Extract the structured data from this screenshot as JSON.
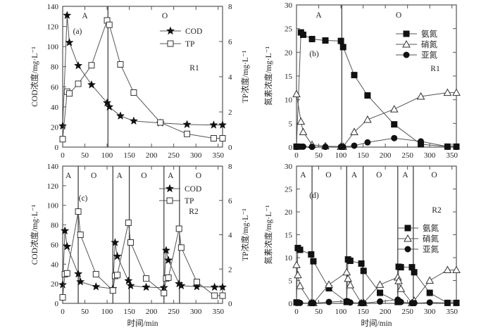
{
  "chart_data": [
    {
      "id": "a",
      "type": "line",
      "panel_label": "(a)",
      "reactor_label": "R1",
      "xlabel": "",
      "ylabel": "COD浓度/mg·L⁻¹",
      "y2label": "TP浓度/mg·L⁻¹",
      "xlim": [
        0,
        360
      ],
      "ylim": [
        0,
        140
      ],
      "y2lim": [
        0,
        8
      ],
      "xticks": [
        0,
        50,
        100,
        150,
        200,
        250,
        300,
        350
      ],
      "yticks": [
        0,
        20,
        40,
        60,
        80,
        100,
        120,
        140
      ],
      "y2ticks": [
        0,
        2,
        4,
        6,
        8
      ],
      "phase_boundaries": [
        102
      ],
      "phases": [
        {
          "label": "A",
          "x": 50
        },
        {
          "label": "O",
          "x": 230
        }
      ],
      "legend": {
        "placement": "top-right",
        "entries": [
          "COD",
          "TP"
        ]
      },
      "series": [
        {
          "name": "COD",
          "axis": "left",
          "marker": "star",
          "x": [
            0,
            10,
            15,
            35,
            65,
            100,
            105,
            130,
            160,
            220,
            280,
            340,
            360
          ],
          "y": [
            21,
            131,
            104,
            81,
            62,
            44,
            40,
            31,
            26,
            24,
            22.5,
            22,
            22
          ]
        },
        {
          "name": "TP",
          "axis": "right",
          "marker": "square-open",
          "x": [
            0,
            10,
            15,
            35,
            65,
            100,
            105,
            130,
            160,
            220,
            280,
            340,
            360
          ],
          "y": [
            0.45,
            3.15,
            3.05,
            3.6,
            4.65,
            7.2,
            6.95,
            4.7,
            3.1,
            1.4,
            0.75,
            0.5,
            0.5
          ]
        }
      ]
    },
    {
      "id": "b",
      "type": "line",
      "panel_label": "(b)",
      "reactor_label": "R1",
      "xlabel": "",
      "ylabel": "氮素浓度/mg·L⁻¹",
      "xlim": [
        0,
        360
      ],
      "ylim": [
        0,
        30
      ],
      "xticks": [
        0,
        50,
        100,
        150,
        200,
        250,
        300,
        350
      ],
      "yticks": [
        0,
        5,
        10,
        15,
        20,
        25,
        30
      ],
      "phase_boundaries": [
        102
      ],
      "phases": [
        {
          "label": "A",
          "x": 50
        },
        {
          "label": "O",
          "x": 230
        }
      ],
      "legend": {
        "placement": "top-right",
        "entries": [
          "氨氮",
          "硝氮",
          "亚氮"
        ]
      },
      "series": [
        {
          "name": "氨氮",
          "marker": "square-filled",
          "x": [
            0,
            10,
            15,
            35,
            65,
            100,
            105,
            130,
            160,
            220,
            280,
            340,
            360
          ],
          "y": [
            0.1,
            24.2,
            23.7,
            22.8,
            22.5,
            22.4,
            21.1,
            15.2,
            10.9,
            4.8,
            0.6,
            0.1,
            0.1
          ]
        },
        {
          "name": "硝氮",
          "marker": "triangle-open",
          "x": [
            0,
            10,
            15,
            35,
            65,
            100,
            105,
            130,
            160,
            220,
            280,
            340,
            360
          ],
          "y": [
            11.2,
            5.4,
            3.2,
            0.5,
            0.2,
            0.1,
            0.1,
            3.2,
            5.8,
            8.0,
            10.7,
            11.5,
            11.5
          ]
        },
        {
          "name": "亚氮",
          "marker": "circle-filled",
          "x": [
            0,
            10,
            15,
            35,
            65,
            100,
            105,
            130,
            160,
            220,
            280,
            340,
            360
          ],
          "y": [
            0.05,
            0.1,
            0.1,
            0.05,
            0.05,
            0.05,
            0.05,
            0.3,
            1.0,
            1.9,
            1.2,
            0.1,
            0.05
          ]
        }
      ]
    },
    {
      "id": "c",
      "type": "line",
      "panel_label": "(c)",
      "reactor_label": "R2",
      "xlabel": "时间/min",
      "ylabel": "COD浓度/mg·L⁻¹",
      "y2label": "TP浓度/mg·L⁻¹",
      "xlim": [
        0,
        360
      ],
      "ylim": [
        0,
        140
      ],
      "y2lim": [
        0,
        8
      ],
      "xticks": [
        0,
        50,
        100,
        150,
        200,
        250,
        300,
        350
      ],
      "yticks": [
        0,
        20,
        40,
        60,
        80,
        100,
        120,
        140
      ],
      "y2ticks": [
        0,
        2,
        4,
        6,
        8
      ],
      "phase_boundaries": [
        35,
        113,
        150,
        228,
        263
      ],
      "phases": [
        {
          "label": "A",
          "x": 13
        },
        {
          "label": "O",
          "x": 70
        },
        {
          "label": "A",
          "x": 128
        },
        {
          "label": "O",
          "x": 183
        },
        {
          "label": "A",
          "x": 243
        },
        {
          "label": "O",
          "x": 306
        }
      ],
      "legend": {
        "placement": "top-right",
        "entries": [
          "COD",
          "TP"
        ]
      },
      "series": [
        {
          "name": "COD",
          "axis": "left",
          "marker": "star",
          "x": [
            0,
            5,
            10,
            35,
            40,
            75,
            113,
            118,
            123,
            148,
            153,
            188,
            228,
            233,
            238,
            262,
            267,
            302,
            342,
            360
          ],
          "y": [
            19,
            74,
            58,
            30,
            22,
            17,
            15,
            62,
            48,
            23,
            18,
            16.5,
            16,
            54,
            44,
            20,
            18,
            17,
            16.5,
            16.5
          ]
        },
        {
          "name": "TP",
          "axis": "right",
          "marker": "square-open",
          "x": [
            0,
            5,
            10,
            35,
            40,
            75,
            113,
            118,
            123,
            148,
            153,
            188,
            228,
            233,
            238,
            262,
            267,
            302,
            342,
            360
          ],
          "y": [
            0.35,
            1.7,
            1.75,
            5.35,
            4.0,
            1.7,
            0.75,
            1.6,
            1.65,
            4.7,
            3.55,
            1.45,
            0.6,
            1.45,
            1.5,
            4.35,
            3.25,
            1.25,
            0.45,
            0.45
          ]
        }
      ]
    },
    {
      "id": "d",
      "type": "line",
      "panel_label": "(d)",
      "reactor_label": "R2",
      "xlabel": "时间/min",
      "ylabel": "氮素浓度/mg·L⁻¹",
      "xlim": [
        0,
        360
      ],
      "ylim": [
        0,
        30
      ],
      "xticks": [
        0,
        50,
        100,
        150,
        200,
        250,
        300,
        350
      ],
      "yticks": [
        0,
        5,
        10,
        15,
        20,
        25,
        30
      ],
      "phase_boundaries": [
        35,
        113,
        150,
        228,
        263
      ],
      "phases": [
        {
          "label": "A",
          "x": 15
        },
        {
          "label": "O",
          "x": 72
        },
        {
          "label": "A",
          "x": 130
        },
        {
          "label": "O",
          "x": 186
        },
        {
          "label": "A",
          "x": 245
        },
        {
          "label": "O",
          "x": 310
        }
      ],
      "legend": {
        "placement": "center-right",
        "entries": [
          "氨氮",
          "硝氮",
          "亚氮"
        ]
      },
      "series": [
        {
          "name": "氨氮",
          "marker": "square-filled",
          "x": [
            0,
            3,
            8,
            33,
            38,
            73,
            113,
            116,
            121,
            146,
            151,
            188,
            228,
            230,
            235,
            260,
            265,
            300,
            340,
            360
          ],
          "y": [
            0.2,
            12.1,
            11.7,
            10.7,
            9.2,
            3.3,
            0.3,
            9.6,
            9.3,
            8.7,
            7.1,
            2.3,
            0.3,
            8.0,
            7.9,
            7.9,
            6.8,
            2.3,
            0.1,
            0.1
          ]
        },
        {
          "name": "硝氮",
          "marker": "triangle-open",
          "x": [
            0,
            3,
            8,
            33,
            38,
            73,
            113,
            116,
            121,
            146,
            151,
            188,
            228,
            230,
            235,
            260,
            265,
            300,
            340,
            360
          ],
          "y": [
            8.4,
            6.2,
            3.8,
            0.1,
            0.1,
            4.1,
            6.8,
            5.4,
            4.0,
            0.1,
            0.1,
            4.1,
            5.7,
            4.9,
            3.2,
            0.1,
            0.6,
            5.0,
            7.3,
            7.3
          ]
        },
        {
          "name": "亚氮",
          "marker": "circle-filled",
          "x": [
            0,
            3,
            8,
            33,
            38,
            73,
            113,
            116,
            121,
            146,
            151,
            188,
            228,
            230,
            235,
            260,
            265,
            300,
            340,
            360
          ],
          "y": [
            0.1,
            0.1,
            0.1,
            0.05,
            0.05,
            0.3,
            0.5,
            0.4,
            0.2,
            0.05,
            0.05,
            0.4,
            0.8,
            0.6,
            0.3,
            0.05,
            0.05,
            0.2,
            0.1,
            0.1
          ]
        }
      ]
    }
  ]
}
